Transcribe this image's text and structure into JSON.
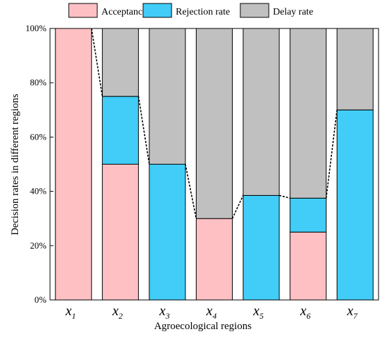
{
  "chart_data": {
    "type": "bar",
    "stacked": true,
    "categories": [
      {
        "base": "x",
        "sub": "1"
      },
      {
        "base": "x",
        "sub": "2"
      },
      {
        "base": "x",
        "sub": "3"
      },
      {
        "base": "x",
        "sub": "4"
      },
      {
        "base": "x",
        "sub": "5"
      },
      {
        "base": "x",
        "sub": "6"
      },
      {
        "base": "x",
        "sub": "7"
      }
    ],
    "series": [
      {
        "name": "Acceptance rate",
        "color": "#ffc0c4",
        "values": [
          100,
          50,
          0,
          30,
          0,
          25,
          0
        ]
      },
      {
        "name": "Rejection rate",
        "color": "#41cdf7",
        "values": [
          0,
          25,
          50,
          0,
          38.5,
          12.5,
          70
        ]
      },
      {
        "name": "Delay rate",
        "color": "#c0c0c0",
        "values": [
          0,
          25,
          50,
          70,
          61.5,
          62.5,
          30
        ]
      }
    ],
    "xlabel": "Agroecological regions",
    "ylabel": "Decision rates in different regions",
    "ylim": [
      0,
      100
    ],
    "yticks": [
      0,
      20,
      40,
      60,
      80,
      100
    ],
    "ytick_labels": [
      "0%",
      "20%",
      "40%",
      "60%",
      "80%",
      "100%"
    ],
    "legend_position": "top",
    "grid": false,
    "connector_lines": "dashed"
  }
}
